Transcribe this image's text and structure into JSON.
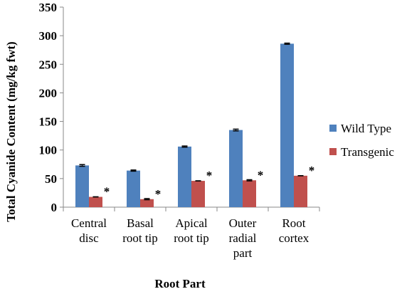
{
  "chart_data": {
    "type": "bar",
    "categories": [
      [
        "Central",
        "disc"
      ],
      [
        "Basal",
        "root tip"
      ],
      [
        "Apical",
        "root tip"
      ],
      [
        "Outer",
        "radial",
        "part"
      ],
      [
        "Root",
        "cortex"
      ]
    ],
    "series": [
      {
        "name": "Wild Type",
        "color": "#4F81BD",
        "values": [
          73,
          64,
          106,
          135,
          286
        ],
        "errors": [
          1.5,
          1,
          1,
          1.5,
          1
        ]
      },
      {
        "name": "Transgenic",
        "color": "#C0504D",
        "values": [
          18,
          14,
          46,
          47,
          55
        ],
        "errors": [
          0,
          1,
          0,
          1,
          0
        ]
      }
    ],
    "significance_marker": "*",
    "ylabel": "Total Cyanide Content (mg/kg fwt)",
    "xlabel": "Root Part",
    "ylim": [
      0,
      350
    ],
    "yticks": [
      0,
      50,
      100,
      150,
      200,
      250,
      300,
      350
    ],
    "grid": false,
    "legend_position": "right"
  }
}
